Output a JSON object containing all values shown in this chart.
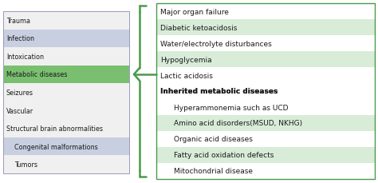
{
  "left_items": [
    {
      "text": "Trauma",
      "indent": 0,
      "bg": "#f0f0f0"
    },
    {
      "text": "Infection",
      "indent": 0,
      "bg": "#c8cfe0"
    },
    {
      "text": "Intoxication",
      "indent": 0,
      "bg": "#f0f0f0"
    },
    {
      "text": "Metabolic diseases",
      "indent": 0,
      "bg": "#7abf70"
    },
    {
      "text": "Seizures",
      "indent": 0,
      "bg": "#f0f0f0"
    },
    {
      "text": "Vascular",
      "indent": 0,
      "bg": "#f0f0f0"
    },
    {
      "text": "Structural brain abnormalities",
      "indent": 0,
      "bg": "#f0f0f0"
    },
    {
      "text": "Congenital malformations",
      "indent": 1,
      "bg": "#c8cfe0"
    },
    {
      "text": "Tumors",
      "indent": 1,
      "bg": "#f0f0f0"
    }
  ],
  "right_items": [
    {
      "text": "Major organ failure",
      "bg": "#ffffff",
      "bold": false,
      "underline": false,
      "indent": 0
    },
    {
      "text": "Diabetic ketoacidosis",
      "bg": "#d8ecd8",
      "bold": false,
      "underline": false,
      "indent": 0
    },
    {
      "text": "Water/electrolyte disturbances",
      "bg": "#ffffff",
      "bold": false,
      "underline": false,
      "indent": 0
    },
    {
      "text": "Hypoglycemia",
      "bg": "#d8ecd8",
      "bold": false,
      "underline": false,
      "indent": 0
    },
    {
      "text": "Lactic acidosis",
      "bg": "#ffffff",
      "bold": false,
      "underline": false,
      "indent": 0
    },
    {
      "text": "Inherited metabolic diseases",
      "bg": "#ffffff",
      "bold": true,
      "underline": true,
      "indent": 0
    },
    {
      "text": "Hyperammonemia such as UCD",
      "bg": "#ffffff",
      "bold": false,
      "underline": false,
      "indent": 1
    },
    {
      "text": "Amino acid disorders(MSUD, NKHG)",
      "bg": "#d8ecd8",
      "bold": false,
      "underline": false,
      "indent": 1
    },
    {
      "text": "Organic acid diseases",
      "bg": "#ffffff",
      "bold": false,
      "underline": false,
      "indent": 1
    },
    {
      "text": "Fatty acid oxidation defects",
      "bg": "#d8ecd8",
      "bold": false,
      "underline": false,
      "indent": 1
    },
    {
      "text": "Mitochondrial disease",
      "bg": "#ffffff",
      "bold": false,
      "underline": false,
      "indent": 1
    }
  ],
  "fig_width": 4.74,
  "fig_height": 2.3,
  "dpi": 100,
  "text_color": "#1a1a1a",
  "brace_color": "#4a9a4a",
  "left_border_color": "#9999bb",
  "right_border_color": "#4a9a4a"
}
